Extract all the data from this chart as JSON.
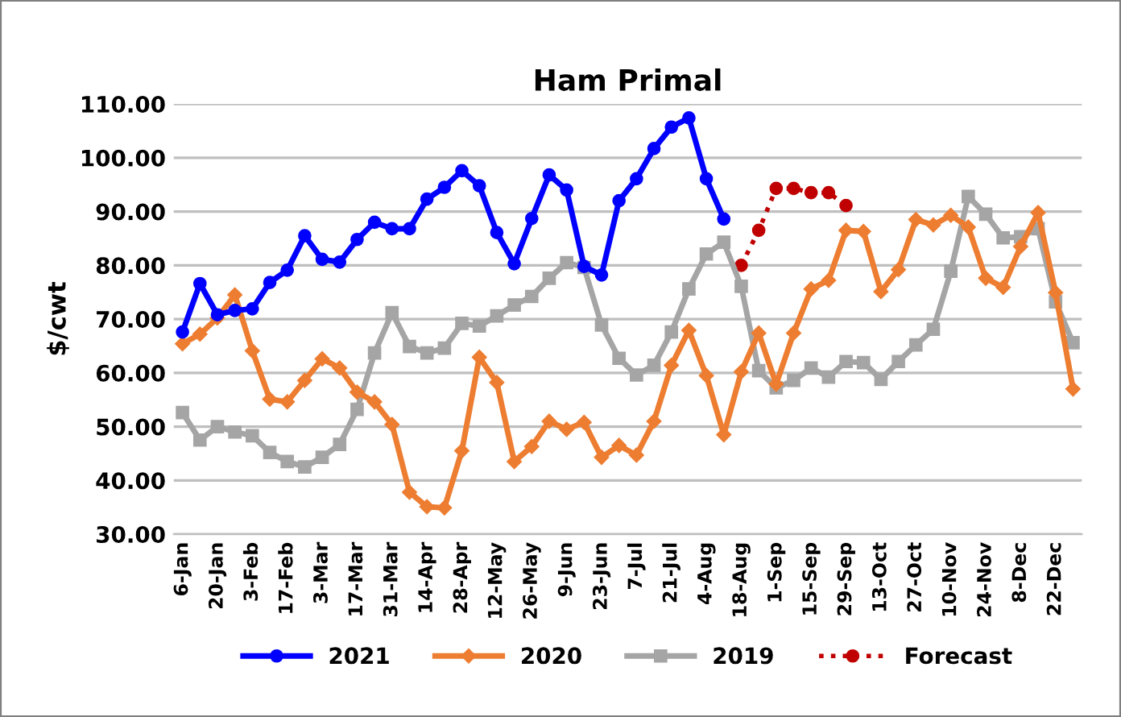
{
  "chart_data": {
    "type": "line",
    "title": "Ham Primal",
    "ylabel": "$/cwt",
    "categories": [
      "6-Jan",
      null,
      "20-Jan",
      null,
      "3-Feb",
      null,
      "17-Feb",
      null,
      "3-Mar",
      null,
      "17-Mar",
      null,
      "31-Mar",
      null,
      "14-Apr",
      null,
      "28-Apr",
      null,
      "12-May",
      null,
      "26-May",
      null,
      "9-Jun",
      null,
      "23-Jun",
      null,
      "7-Jul",
      null,
      "21-Jul",
      null,
      "4-Aug",
      null,
      "18-Aug",
      null,
      "1-Sep",
      null,
      "15-Sep",
      null,
      "29-Sep",
      null,
      "13-Oct",
      null,
      "27-Oct",
      null,
      "10-Nov",
      null,
      "24-Nov",
      null,
      "8-Dec",
      null,
      "22-Dec",
      null
    ],
    "series": [
      {
        "name": "2021",
        "color": "#0000ff",
        "marker": "circle",
        "line_style": "solid",
        "values": [
          67.6,
          76.6,
          70.8,
          71.6,
          71.9,
          76.8,
          79.1,
          85.5,
          81.1,
          80.6,
          84.8,
          88.0,
          86.8,
          86.8,
          92.3,
          94.5,
          97.6,
          94.8,
          86.1,
          80.3,
          88.7,
          96.8,
          94.0,
          79.8,
          78.2,
          92.0,
          96.1,
          101.7,
          105.7,
          107.4,
          96.1,
          88.6,
          null,
          null,
          null,
          null,
          null,
          null,
          null,
          null,
          null,
          null,
          null,
          null,
          null,
          null,
          null,
          null,
          null,
          null,
          null,
          null
        ]
      },
      {
        "name": "2020",
        "color": "#ed7d31",
        "marker": "diamond",
        "line_style": "solid",
        "values": [
          65.4,
          67.2,
          70.2,
          74.5,
          64.1,
          55.1,
          54.6,
          58.6,
          62.6,
          60.9,
          56.4,
          54.6,
          50.4,
          37.8,
          35.1,
          34.9,
          45.5,
          62.9,
          58.2,
          43.5,
          46.3,
          51.0,
          49.5,
          50.8,
          44.3,
          46.5,
          44.7,
          51.0,
          61.4,
          67.9,
          59.5,
          48.5,
          60.2,
          67.4,
          57.9,
          67.4,
          75.6,
          77.2,
          86.5,
          86.3,
          75.1,
          79.2,
          88.5,
          87.5,
          89.3,
          87.1,
          77.6,
          75.9,
          83.5,
          89.8,
          74.9,
          57.0
        ]
      },
      {
        "name": "2019",
        "color": "#a5a5a5",
        "marker": "square",
        "line_style": "solid",
        "values": [
          52.6,
          47.5,
          50.0,
          49.0,
          48.3,
          45.2,
          43.5,
          42.5,
          44.3,
          46.7,
          53.2,
          63.7,
          71.2,
          64.9,
          63.7,
          64.6,
          69.2,
          68.7,
          70.6,
          72.6,
          74.2,
          77.6,
          80.5,
          79.6,
          68.9,
          62.7,
          59.6,
          61.4,
          67.6,
          75.6,
          82.1,
          84.3,
          76.1,
          60.4,
          57.2,
          58.6,
          60.9,
          59.2,
          62.1,
          61.9,
          58.8,
          62.1,
          65.2,
          68.1,
          78.9,
          92.8,
          89.5,
          85.1,
          85.3,
          86.8,
          73.2,
          65.6
        ]
      },
      {
        "name": "Forecast",
        "color": "#c00000",
        "marker": "circle",
        "line_style": "dotted",
        "values": [
          null,
          null,
          null,
          null,
          null,
          null,
          null,
          null,
          null,
          null,
          null,
          null,
          null,
          null,
          null,
          null,
          null,
          null,
          null,
          null,
          null,
          null,
          null,
          null,
          null,
          null,
          null,
          null,
          null,
          null,
          null,
          null,
          80.0,
          86.5,
          94.3,
          94.3,
          93.5,
          93.5,
          91.1,
          null,
          null,
          null,
          null,
          null,
          null,
          null,
          null,
          null,
          null,
          null,
          null,
          null
        ]
      }
    ],
    "ylim": [
      30,
      110
    ],
    "yticks": [
      {
        "value": 30,
        "label": "30.00"
      },
      {
        "value": 40,
        "label": "40.00"
      },
      {
        "value": 50,
        "label": "50.00"
      },
      {
        "value": 60,
        "label": "60.00"
      },
      {
        "value": 70,
        "label": "70.00"
      },
      {
        "value": 80,
        "label": "80.00"
      },
      {
        "value": 90,
        "label": "90.00"
      },
      {
        "value": 100,
        "label": "100.00"
      },
      {
        "value": 110,
        "label": "110.00"
      }
    ],
    "grid": "y",
    "legend": "bottom"
  }
}
